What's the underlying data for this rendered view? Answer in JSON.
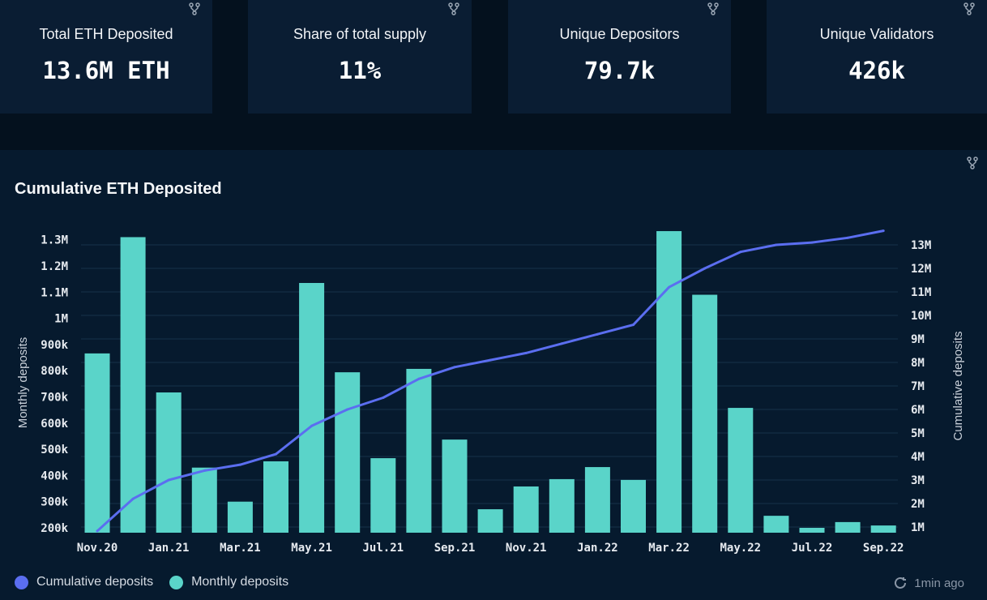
{
  "cards": [
    {
      "title": "Total ETH Deposited",
      "value": "13.6M ETH"
    },
    {
      "title": "Share of total supply",
      "value": "11%"
    },
    {
      "title": "Unique Depositors",
      "value": "79.7k"
    },
    {
      "title": "Unique Validators",
      "value": "426k"
    }
  ],
  "footer": {
    "updated": "1min ago",
    "updated_icon": "refresh-clock-icon"
  },
  "colors": {
    "bars": "#5ad4c9",
    "line": "#5b6ef0",
    "grid": "#17324a"
  },
  "chart_data": {
    "type": "bar",
    "title": "Cumulative ETH Deposited",
    "ylabel": "Monthly deposits",
    "y2label": "Cumulative deposits",
    "categories": [
      "Nov.20",
      "Dec.20",
      "Jan.21",
      "Feb.21",
      "Mar.21",
      "Apr.21",
      "May.21",
      "Jun.21",
      "Jul.21",
      "Aug.21",
      "Sep.21",
      "Oct.21",
      "Nov.21",
      "Dec.21",
      "Jan.22",
      "Feb.22",
      "Mar.22",
      "Apr.22",
      "May.22",
      "Jun.22",
      "Jul.22",
      "Aug.22",
      "Sep.22"
    ],
    "x_tick_labels": [
      "Nov.20",
      "Jan.21",
      "Mar.21",
      "May.21",
      "Jul.21",
      "Sep.21",
      "Nov.21",
      "Jan.22",
      "Mar.22",
      "May.22",
      "Jul.22",
      "Sep.22"
    ],
    "y_ticks": [
      "1.3M",
      "1.2M",
      "1.1M",
      "1M",
      "900k",
      "800k",
      "700k",
      "600k",
      "500k",
      "400k",
      "300k",
      "200k"
    ],
    "y_tick_values": [
      1300000,
      1200000,
      1100000,
      1000000,
      900000,
      800000,
      700000,
      600000,
      500000,
      400000,
      300000,
      200000
    ],
    "y2_ticks": [
      "13M",
      "12M",
      "11M",
      "10M",
      "9M",
      "8M",
      "7M",
      "6M",
      "5M",
      "4M",
      "3M",
      "2M",
      "1M"
    ],
    "y2_tick_values": [
      13,
      12,
      11,
      10,
      9,
      8,
      7,
      6,
      5,
      4,
      3,
      2,
      1
    ],
    "ylim": [
      180000,
      1350000
    ],
    "y2lim": [
      0.8,
      13.8
    ],
    "legend_position": "bottom-left",
    "series": [
      {
        "name": "Cumulative deposits",
        "type": "line",
        "axis": "right",
        "unit": "M ETH",
        "values": [
          0.83,
          2.2,
          3.0,
          3.4,
          3.65,
          4.1,
          5.3,
          6.0,
          6.5,
          7.3,
          7.8,
          8.1,
          8.4,
          8.8,
          9.2,
          9.6,
          11.2,
          12.0,
          12.7,
          13.0,
          13.1,
          13.3,
          13.6
        ]
      },
      {
        "name": "Monthly deposits",
        "type": "bar",
        "axis": "left",
        "unit": "ETH",
        "values": [
          866000,
          1310000,
          717000,
          430000,
          300000,
          454000,
          1135000,
          794000,
          466000,
          807000,
          537000,
          271000,
          358000,
          386000,
          432000,
          383000,
          1333000,
          1090000,
          658000,
          246000,
          200000,
          222000,
          209000
        ]
      }
    ]
  }
}
